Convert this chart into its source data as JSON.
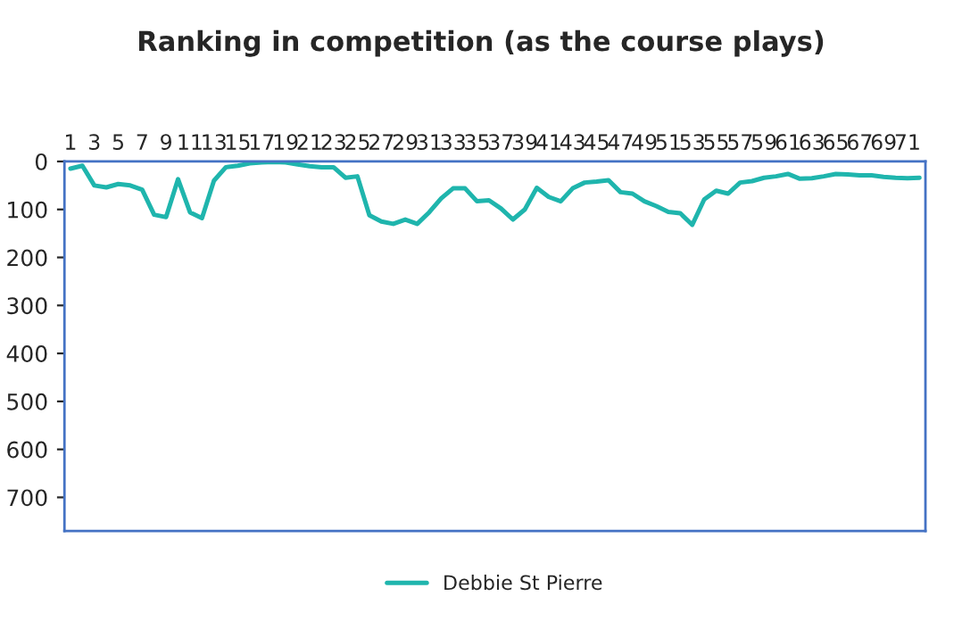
{
  "chart_data": {
    "type": "line",
    "title": "Ranking in competition (as the course plays)",
    "categories": [
      "1",
      null,
      "3",
      null,
      "5",
      null,
      "7",
      null,
      "9",
      null,
      "11",
      null,
      "13",
      null,
      "15",
      null,
      "17",
      null,
      "19",
      null,
      "21",
      null,
      "23",
      null,
      "25",
      null,
      "27",
      null,
      "29",
      null,
      "31",
      null,
      "33",
      null,
      "35",
      null,
      "37",
      null,
      "39",
      null,
      "41",
      null,
      "43",
      null,
      "45",
      null,
      "47",
      null,
      "49",
      null,
      "51",
      null,
      "53",
      null,
      "55",
      null,
      "57",
      null,
      "59",
      null,
      "61",
      null,
      "63",
      null,
      "65",
      null,
      "67",
      null,
      "69",
      null,
      "71",
      null
    ],
    "series": [
      {
        "name": "Debbie St Pierre",
        "color": "#1fb5ad",
        "values": [
          15,
          9,
          50,
          54,
          47,
          50,
          59,
          111,
          116,
          37,
          106,
          118,
          40,
          12,
          9,
          4,
          2,
          1,
          2,
          6,
          10,
          12,
          12,
          34,
          31,
          112,
          125,
          130,
          121,
          130,
          106,
          77,
          56,
          56,
          83,
          81,
          98,
          121,
          100,
          55,
          74,
          83,
          56,
          44,
          42,
          39,
          64,
          67,
          83,
          93,
          105,
          108,
          132,
          79,
          61,
          67,
          44,
          41,
          34,
          31,
          26,
          36,
          35,
          31,
          26,
          27,
          29,
          29,
          32,
          34,
          35,
          34
        ]
      }
    ],
    "ylim": [
      770,
      0
    ],
    "yticks": [
      0,
      100,
      200,
      300,
      400,
      500,
      600,
      700
    ],
    "grid": false,
    "legend": "bottom",
    "marker": "none",
    "line_style": "solid"
  }
}
